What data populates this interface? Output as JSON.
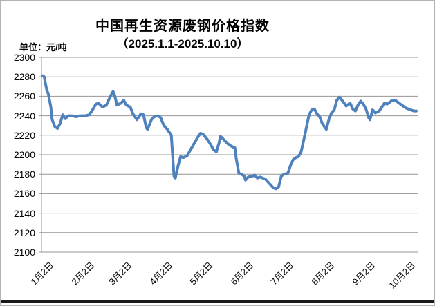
{
  "page": {
    "title": "中国再生资源废钢价格指数",
    "subtitle": "（2025.1.1-2025.10.10）",
    "unit_label": "单位：元/吨"
  },
  "chart_data": {
    "type": "line",
    "title": "中国再生资源废钢价格指数",
    "subtitle": "（2025.1.1-2025.10.10）",
    "ylabel": "单位：元/吨",
    "xlabel": "",
    "ylim": [
      2100,
      2300
    ],
    "y_tick_step": 20,
    "y_ticks": [
      2300,
      2280,
      2260,
      2240,
      2220,
      2200,
      2180,
      2160,
      2140,
      2120,
      2100
    ],
    "x_tick_labels": [
      "1月2日",
      "2月2日",
      "3月2日",
      "4月2日",
      "5月2日",
      "6月2日",
      "7月2日",
      "8月2日",
      "9月2日",
      "10月2日"
    ],
    "x_tick_days": [
      1,
      32,
      60,
      91,
      121,
      152,
      182,
      213,
      244,
      274
    ],
    "x_range_days": [
      0,
      282
    ],
    "grid": "horizontal",
    "legend": "none",
    "line_color": "#4f81bd",
    "grid_color": "#969696",
    "series": [
      {
        "name": "中国再生资源废钢价格指数",
        "points": [
          [
            0,
            2281
          ],
          [
            1,
            2280
          ],
          [
            3,
            2266
          ],
          [
            4,
            2263
          ],
          [
            6,
            2249
          ],
          [
            7,
            2236
          ],
          [
            9,
            2229
          ],
          [
            11,
            2227
          ],
          [
            13,
            2232
          ],
          [
            15,
            2241
          ],
          [
            17,
            2237
          ],
          [
            19,
            2240
          ],
          [
            22,
            2240
          ],
          [
            25,
            2239
          ],
          [
            28,
            2240
          ],
          [
            32,
            2240
          ],
          [
            35,
            2241
          ],
          [
            37,
            2245
          ],
          [
            40,
            2252
          ],
          [
            42,
            2253
          ],
          [
            45,
            2249
          ],
          [
            48,
            2251
          ],
          [
            50,
            2257
          ],
          [
            53,
            2265
          ],
          [
            54,
            2262
          ],
          [
            56,
            2251
          ],
          [
            59,
            2253
          ],
          [
            61,
            2256
          ],
          [
            63,
            2251
          ],
          [
            66,
            2249
          ],
          [
            68,
            2242
          ],
          [
            71,
            2236
          ],
          [
            74,
            2242
          ],
          [
            76,
            2241
          ],
          [
            78,
            2228
          ],
          [
            79,
            2226
          ],
          [
            82,
            2236
          ],
          [
            84,
            2239
          ],
          [
            87,
            2240
          ],
          [
            89,
            2238
          ],
          [
            91,
            2231
          ],
          [
            92,
            2229
          ],
          [
            94,
            2226
          ],
          [
            96,
            2222
          ],
          [
            97,
            2220
          ],
          [
            99,
            2178
          ],
          [
            100,
            2176
          ],
          [
            102,
            2188
          ],
          [
            104,
            2198
          ],
          [
            106,
            2197
          ],
          [
            109,
            2199
          ],
          [
            111,
            2204
          ],
          [
            114,
            2211
          ],
          [
            117,
            2218
          ],
          [
            119,
            2222
          ],
          [
            121,
            2221
          ],
          [
            124,
            2216
          ],
          [
            126,
            2212
          ],
          [
            129,
            2205
          ],
          [
            131,
            2203
          ],
          [
            133,
            2212
          ],
          [
            134,
            2219
          ],
          [
            137,
            2215
          ],
          [
            139,
            2212
          ],
          [
            142,
            2209
          ],
          [
            145,
            2207
          ],
          [
            146,
            2196
          ],
          [
            148,
            2181
          ],
          [
            150,
            2180
          ],
          [
            152,
            2178
          ],
          [
            153,
            2174
          ],
          [
            155,
            2177
          ],
          [
            158,
            2178
          ],
          [
            160,
            2179
          ],
          [
            162,
            2176
          ],
          [
            164,
            2177
          ],
          [
            166,
            2176
          ],
          [
            168,
            2175
          ],
          [
            170,
            2172
          ],
          [
            172,
            2169
          ],
          [
            174,
            2166
          ],
          [
            176,
            2165
          ],
          [
            178,
            2167
          ],
          [
            180,
            2178
          ],
          [
            182,
            2180
          ],
          [
            185,
            2181
          ],
          [
            187,
            2189
          ],
          [
            189,
            2195
          ],
          [
            191,
            2197
          ],
          [
            193,
            2198
          ],
          [
            195,
            2203
          ],
          [
            197,
            2215
          ],
          [
            199,
            2228
          ],
          [
            201,
            2241
          ],
          [
            203,
            2246
          ],
          [
            205,
            2247
          ],
          [
            207,
            2242
          ],
          [
            209,
            2239
          ],
          [
            211,
            2232
          ],
          [
            213,
            2228
          ],
          [
            214,
            2226
          ],
          [
            216,
            2236
          ],
          [
            218,
            2243
          ],
          [
            220,
            2246
          ],
          [
            222,
            2256
          ],
          [
            224,
            2259
          ],
          [
            227,
            2254
          ],
          [
            229,
            2250
          ],
          [
            231,
            2252
          ],
          [
            232,
            2253
          ],
          [
            234,
            2247
          ],
          [
            236,
            2245
          ],
          [
            238,
            2251
          ],
          [
            240,
            2255
          ],
          [
            242,
            2252
          ],
          [
            244,
            2247
          ],
          [
            246,
            2238
          ],
          [
            247,
            2236
          ],
          [
            249,
            2246
          ],
          [
            251,
            2243
          ],
          [
            254,
            2245
          ],
          [
            256,
            2249
          ],
          [
            258,
            2253
          ],
          [
            260,
            2252
          ],
          [
            262,
            2254
          ],
          [
            264,
            2256
          ],
          [
            266,
            2256
          ],
          [
            268,
            2254
          ],
          [
            270,
            2252
          ],
          [
            272,
            2250
          ],
          [
            274,
            2248
          ],
          [
            276,
            2247
          ],
          [
            278,
            2246
          ],
          [
            280,
            2245
          ],
          [
            282,
            2245
          ]
        ]
      }
    ]
  }
}
